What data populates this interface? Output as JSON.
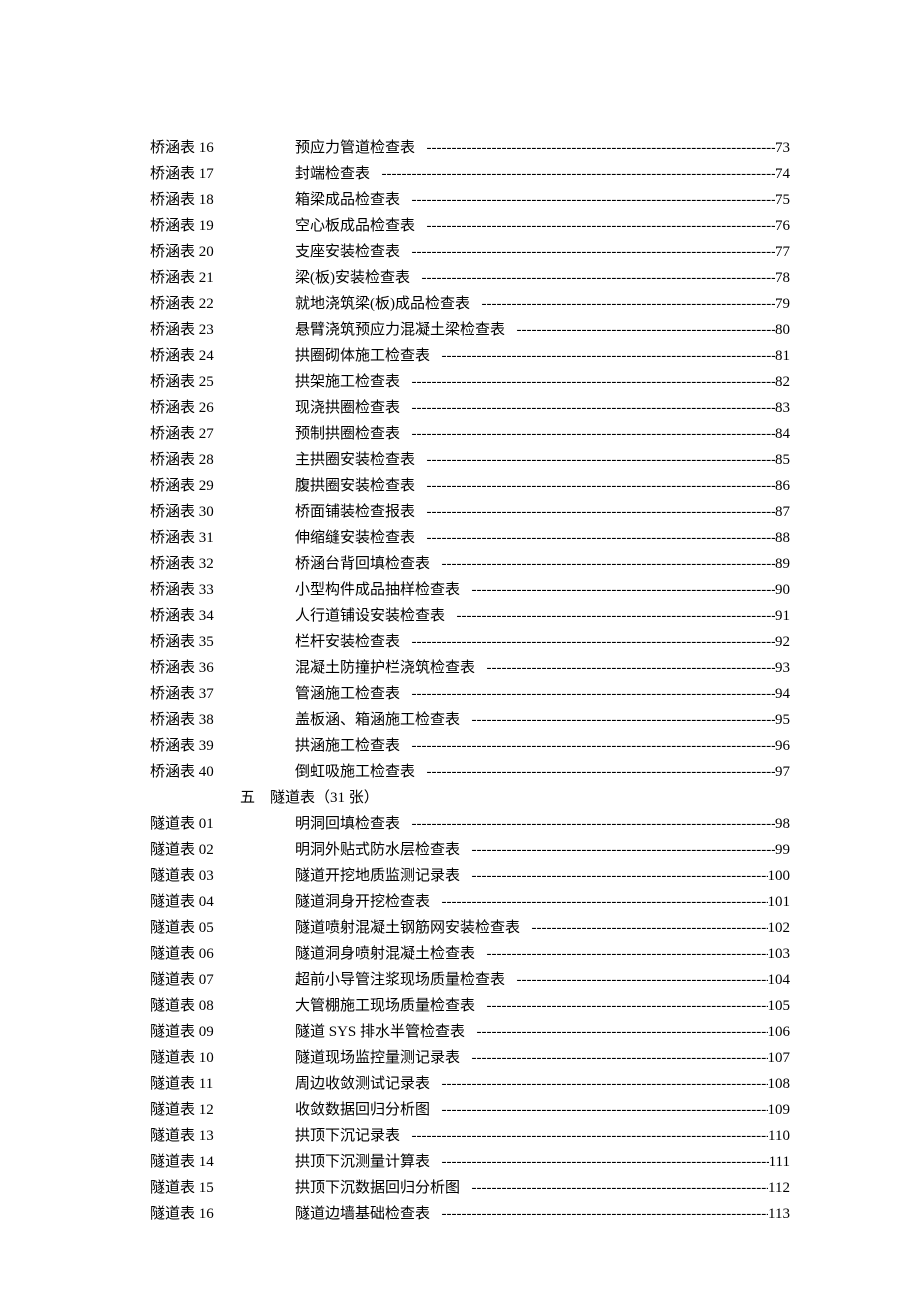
{
  "font_color": "#000000",
  "background_color": "#ffffff",
  "base_fontsize": 15,
  "line_height": 26,
  "entries": [
    {
      "label": "桥涵表 16",
      "title": "预应力管道检查表",
      "page": "73"
    },
    {
      "label": "桥涵表 17",
      "title": "封端检查表",
      "page": "74"
    },
    {
      "label": "桥涵表 18",
      "title": "箱梁成品检查表",
      "page": "75"
    },
    {
      "label": "桥涵表 19",
      "title": "空心板成品检查表",
      "page": "76"
    },
    {
      "label": "桥涵表 20",
      "title": "支座安装检查表",
      "page": "77"
    },
    {
      "label": "桥涵表 21",
      "title": "梁(板)安装检查表",
      "page": "78"
    },
    {
      "label": "桥涵表 22",
      "title": "就地浇筑梁(板)成品检查表",
      "page": "79"
    },
    {
      "label": "桥涵表 23",
      "title": "悬臂浇筑预应力混凝土梁检查表",
      "page": "80"
    },
    {
      "label": "桥涵表 24",
      "title": "拱圈砌体施工检查表",
      "page": "81"
    },
    {
      "label": "桥涵表 25",
      "title": "拱架施工检查表",
      "page": "82"
    },
    {
      "label": "桥涵表 26",
      "title": "现浇拱圈检查表",
      "page": "83"
    },
    {
      "label": "桥涵表 27",
      "title": "预制拱圈检查表",
      "page": "84"
    },
    {
      "label": "桥涵表 28",
      "title": "主拱圈安装检查表",
      "page": "85"
    },
    {
      "label": "桥涵表 29",
      "title": "腹拱圈安装检查表",
      "page": "86"
    },
    {
      "label": "桥涵表 30",
      "title": "桥面铺装检查报表",
      "page": "87"
    },
    {
      "label": "桥涵表 31",
      "title": "伸缩缝安装检查表",
      "page": "88"
    },
    {
      "label": "桥涵表 32",
      "title": "桥涵台背回填检查表",
      "page": "89"
    },
    {
      "label": "桥涵表 33",
      "title": "小型构件成品抽样检查表",
      "page": "90"
    },
    {
      "label": "桥涵表 34",
      "title": "人行道铺设安装检查表",
      "page": "91"
    },
    {
      "label": "桥涵表 35",
      "title": "栏杆安装检查表",
      "page": "92"
    },
    {
      "label": "桥涵表 36",
      "title": "混凝土防撞护栏浇筑检查表",
      "page": "93"
    },
    {
      "label": "桥涵表 37",
      "title": "管涵施工检查表",
      "page": "94"
    },
    {
      "label": "桥涵表 38",
      "title": "盖板涵、箱涵施工检查表",
      "page": "95"
    },
    {
      "label": "桥涵表 39",
      "title": "拱涵施工检查表",
      "page": "96"
    },
    {
      "label": "桥涵表 40",
      "title": "倒虹吸施工检查表",
      "page": "97"
    },
    {
      "type": "section",
      "num": "五",
      "title": "隧道表（31 张）"
    },
    {
      "label": "隧道表 01",
      "title": "明洞回填检查表",
      "page": "98"
    },
    {
      "label": "隧道表 02",
      "title": "明洞外贴式防水层检查表",
      "page": "99"
    },
    {
      "label": "隧道表 03",
      "title": "隧道开挖地质监测记录表",
      "page": "100"
    },
    {
      "label": "隧道表 04",
      "title": "隧道洞身开挖检查表",
      "page": "101"
    },
    {
      "label": "隧道表 05",
      "title": "隧道喷射混凝土钢筋网安装检查表",
      "page": "102"
    },
    {
      "label": "隧道表 06",
      "title": "隧道洞身喷射混凝土检查表",
      "page": "103"
    },
    {
      "label": "隧道表 07",
      "title": "超前小导管注浆现场质量检查表",
      "page": "104"
    },
    {
      "label": "隧道表 08",
      "title": "大管棚施工现场质量检查表",
      "page": "105"
    },
    {
      "label": "隧道表 09",
      "title": "隧道 SYS 排水半管检查表",
      "page": "106"
    },
    {
      "label": "隧道表 10",
      "title": "隧道现场监控量测记录表",
      "page": "107"
    },
    {
      "label": "隧道表 11",
      "title": "周边收敛测试记录表",
      "page": "108"
    },
    {
      "label": "隧道表 12",
      "title": "收敛数据回归分析图",
      "page": "109"
    },
    {
      "label": "隧道表 13",
      "title": "拱顶下沉记录表",
      "page": "110"
    },
    {
      "label": "隧道表 14",
      "title": "拱顶下沉测量计算表",
      "page": "111"
    },
    {
      "label": "隧道表 15",
      "title": "拱顶下沉数据回归分析图",
      "page": "112"
    },
    {
      "label": "隧道表 16",
      "title": "隧道边墙基础检查表",
      "page": "113"
    }
  ]
}
